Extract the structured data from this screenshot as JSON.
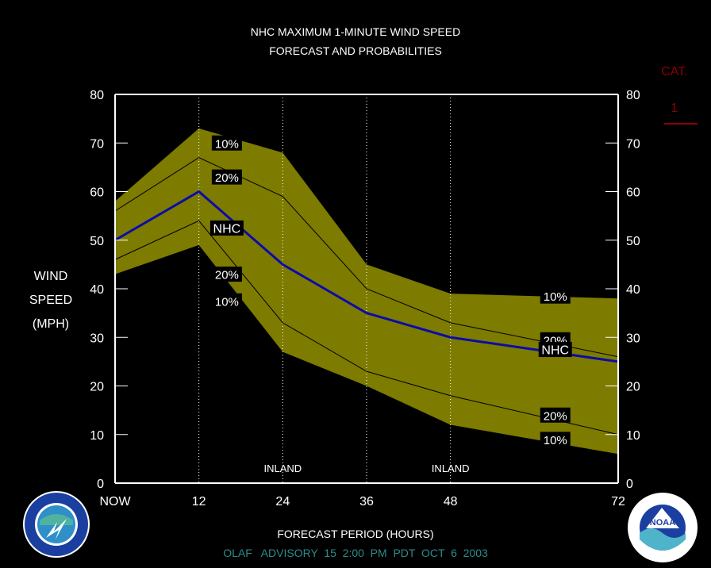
{
  "title": {
    "line1": "NHC MAXIMUM 1-MINUTE WIND SPEED",
    "line2": "FORECAST AND PROBABILITIES"
  },
  "y_axis_label": [
    "WIND",
    "SPEED",
    "(MPH)"
  ],
  "x_axis_label": "FORECAST PERIOD (HOURS)",
  "advisory": "OLAF   ADVISORY  15  2:00  PM  PDT  OCT  6  2003",
  "category": {
    "label": "CAT.",
    "value": "1",
    "color": "#8b0000"
  },
  "colors": {
    "band": "#7d7b00",
    "nhc_line": "#0b0ba8",
    "prob_line": "#000000",
    "advisory": "#2e8b8b",
    "axis": "#ffffff"
  },
  "logos": {
    "left": "nws-logo",
    "right": "noaa-logo"
  },
  "chart_data": {
    "type": "area",
    "x": [
      0,
      12,
      24,
      36,
      48,
      72
    ],
    "x_tick_labels": [
      "NOW",
      "12",
      "24",
      "36",
      "48",
      "72"
    ],
    "xlim": [
      0,
      72
    ],
    "ylim": [
      0,
      80
    ],
    "y_ticks": [
      0,
      10,
      20,
      30,
      40,
      50,
      60,
      70,
      80
    ],
    "ylabel": "WIND SPEED (MPH)",
    "xlabel": "FORECAST PERIOD (HOURS)",
    "inland_hours": [
      24,
      48
    ],
    "inland_label": "INLAND",
    "gridlines_x": [
      12,
      24,
      36,
      48
    ],
    "series": [
      {
        "name": "10%",
        "role": "upper-10",
        "values": [
          58,
          73,
          68,
          45,
          39,
          38
        ]
      },
      {
        "name": "20%",
        "role": "upper-20",
        "values": [
          56,
          67,
          59,
          40,
          33,
          26
        ]
      },
      {
        "name": "NHC",
        "role": "nhc",
        "values": [
          50,
          60,
          45,
          35,
          30,
          25
        ]
      },
      {
        "name": "20%",
        "role": "lower-20",
        "values": [
          46,
          54,
          33,
          23,
          18,
          10
        ]
      },
      {
        "name": "10%",
        "role": "lower-10",
        "values": [
          43,
          49,
          27,
          20,
          12,
          6
        ]
      }
    ],
    "annotations": [
      {
        "text": "10%",
        "x": 16,
        "y": 70
      },
      {
        "text": "20%",
        "x": 16,
        "y": 63
      },
      {
        "text": "NHC",
        "x": 16,
        "y": 52.5
      },
      {
        "text": "20%",
        "x": 16,
        "y": 43
      },
      {
        "text": "10%",
        "x": 16,
        "y": 37.5
      },
      {
        "text": "10%",
        "x": 63,
        "y": 38.5
      },
      {
        "text": "20%",
        "x": 63,
        "y": 29.5
      },
      {
        "text": "NHC",
        "x": 63,
        "y": 27.5
      },
      {
        "text": "20%",
        "x": 63,
        "y": 14
      },
      {
        "text": "10%",
        "x": 63,
        "y": 9
      }
    ]
  }
}
